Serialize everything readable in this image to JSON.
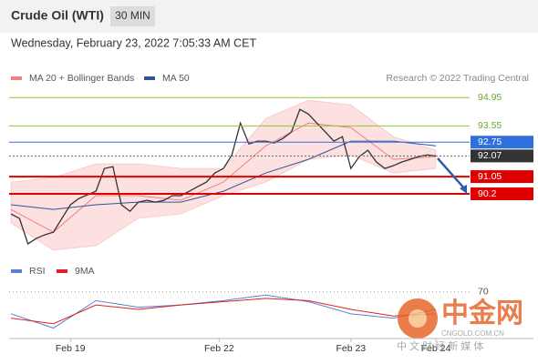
{
  "header": {
    "title": "Crude Oil (WTI)",
    "interval": "30 MIN"
  },
  "timestamp": "Wednesday, February 23, 2022 7:05:33 AM CET",
  "credit": "Research © 2022 Trading Central",
  "watermark": {
    "logo": "中金网",
    "site": "CNGOLD.COM.CN",
    "tagline": "中 文 财 经 新 媒 体"
  },
  "chart_data": [
    {
      "type": "line",
      "x": [
        0,
        1,
        2,
        3,
        4,
        5,
        6,
        7,
        8,
        9,
        10,
        11,
        12,
        13,
        14,
        15,
        16,
        17,
        18,
        19,
        20,
        21,
        22,
        23,
        24,
        25,
        26,
        27,
        28,
        29,
        30,
        31,
        32,
        33,
        34,
        35,
        36,
        37,
        38,
        39,
        40,
        41,
        42,
        43,
        44,
        45,
        46,
        47,
        48,
        49,
        50
      ],
      "values": [
        89.21,
        88.99,
        87.73,
        88.0,
        88.18,
        88.31,
        88.99,
        89.66,
        89.97,
        90.15,
        90.33,
        91.45,
        91.54,
        89.66,
        89.34,
        89.79,
        89.88,
        89.79,
        89.88,
        90.11,
        90.11,
        90.33,
        90.56,
        90.78,
        91.23,
        91.45,
        92.12,
        93.69,
        92.66,
        92.8,
        92.8,
        92.71,
        92.93,
        93.25,
        94.37,
        94.14,
        93.69,
        93.25,
        92.8,
        93.02,
        91.45,
        92.04,
        92.35,
        91.77,
        91.45,
        91.59,
        91.77,
        91.9,
        92.04,
        92.12,
        92.07
      ],
      "color": "#333333",
      "series": [
        {
          "name": "MA 20 + Bollinger Bands",
          "color": "#f08080",
          "band_color": "#fde0e0",
          "x": [
            0,
            5,
            10,
            15,
            20,
            25,
            30,
            35,
            40,
            45,
            50
          ],
          "values": [
            89.43,
            88.31,
            90.11,
            90.11,
            89.88,
            90.78,
            92.57,
            93.69,
            93.47,
            91.9,
            92.04
          ],
          "upper": [
            90.78,
            91.0,
            91.68,
            91.68,
            91.45,
            91.45,
            93.92,
            94.82,
            94.59,
            93.02,
            92.35
          ],
          "lower": [
            88.76,
            87.42,
            87.64,
            88.99,
            89.21,
            90.11,
            90.78,
            91.9,
            92.12,
            91.23,
            91.45
          ]
        },
        {
          "name": "MA 50",
          "color": "#2f5597",
          "x": [
            0,
            5,
            10,
            15,
            20,
            25,
            30,
            35,
            40,
            45,
            50
          ],
          "values": [
            89.66,
            89.43,
            89.66,
            89.79,
            89.79,
            90.33,
            91.23,
            91.9,
            92.8,
            92.8,
            92.57
          ]
        }
      ],
      "levels": [
        {
          "value": 94.95,
          "color": "#8dc63f",
          "box": false
        },
        {
          "value": 93.55,
          "color": "#8dc63f",
          "box": false
        },
        {
          "value": 92.75,
          "color": "#3d6fd8",
          "box": "#2f6fe0"
        },
        {
          "value": 92.07,
          "color": "#666666",
          "box": "#333333"
        },
        {
          "value": 91.05,
          "color": "#e00000",
          "box": "#e00000"
        },
        {
          "value": 90.2,
          "color": "#e00000",
          "box": "#e00000"
        }
      ],
      "xlim": [
        0,
        50
      ],
      "ylim": [
        87.1,
        95.5
      ]
    },
    {
      "type": "line",
      "series": [
        {
          "name": "RSI",
          "color": "#5b7fd4",
          "x": [
            0,
            5,
            10,
            15,
            20,
            25,
            30,
            35,
            40,
            45,
            50
          ],
          "values": [
            50,
            37,
            62,
            56,
            58,
            62,
            67,
            61,
            50,
            46,
            54
          ]
        },
        {
          "name": "9MA",
          "color": "#e02020",
          "x": [
            0,
            5,
            10,
            15,
            20,
            25,
            30,
            35,
            40,
            45,
            50
          ],
          "values": [
            46,
            41,
            58,
            54,
            58,
            61,
            64,
            62,
            54,
            48,
            50
          ]
        }
      ],
      "xlim": [
        0,
        50
      ],
      "ylim": [
        25,
        83
      ],
      "yticks": [
        70
      ],
      "xticks": [
        {
          "value": 7,
          "label": "Feb 19"
        },
        {
          "value": 24.5,
          "label": "Feb 22"
        },
        {
          "value": 40,
          "label": "Feb 23"
        },
        {
          "value": 50,
          "label": "Feb 24"
        }
      ],
      "grid": true
    }
  ]
}
